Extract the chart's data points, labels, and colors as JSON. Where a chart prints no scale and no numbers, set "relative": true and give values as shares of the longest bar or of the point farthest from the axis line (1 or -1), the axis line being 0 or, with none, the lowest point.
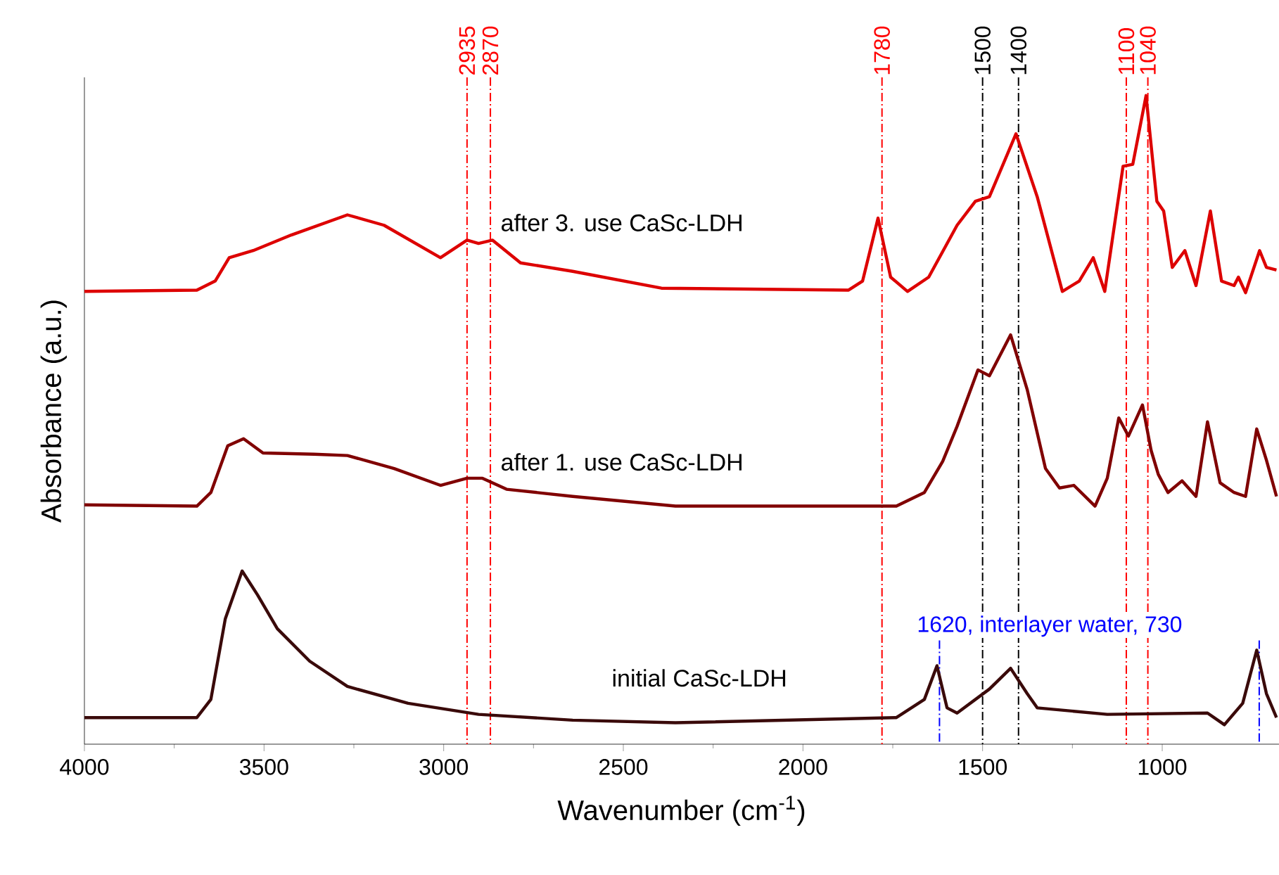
{
  "chart_data": {
    "type": "line",
    "relative": true,
    "xlabel": "Wavenumber (cm$^{-1}$)",
    "ylabel": "Absorbance (a.u.)",
    "xlim": [
      4000,
      675
    ],
    "xticks": [
      4000,
      3500,
      3000,
      2500,
      2000,
      1500,
      1000
    ],
    "legend": false,
    "grid": false,
    "marker": "none",
    "line_style": "solid",
    "series": [
      {
        "name": "after 3. use CaSc-LDH",
        "color": "#dd0000",
        "x": [
          4000,
          3687,
          3636,
          3597,
          3530,
          3424,
          3268,
          3166,
          3009,
          2935,
          2903,
          2864,
          2786,
          2641,
          2394,
          1873,
          1834,
          1791,
          1756,
          1709,
          1650,
          1571,
          1520,
          1481,
          1407,
          1348,
          1278,
          1231,
          1192,
          1160,
          1109,
          1082,
          1045,
          1015,
          996,
          972,
          937,
          906,
          866,
          835,
          800,
          788,
          768,
          729,
          710,
          682
        ],
        "values": [
          0.698,
          0.7,
          0.714,
          0.75,
          0.761,
          0.785,
          0.816,
          0.8,
          0.75,
          0.777,
          0.772,
          0.777,
          0.742,
          0.729,
          0.703,
          0.7,
          0.714,
          0.811,
          0.72,
          0.698,
          0.72,
          0.8,
          0.837,
          0.844,
          0.941,
          0.844,
          0.698,
          0.714,
          0.75,
          0.698,
          0.891,
          0.894,
          1.0,
          0.837,
          0.822,
          0.735,
          0.761,
          0.707,
          0.822,
          0.714,
          0.707,
          0.72,
          0.696,
          0.761,
          0.735,
          0.731
        ]
      },
      {
        "name": "after 1. use CaSc-LDH",
        "color": "#800000",
        "x": [
          4000,
          3687,
          3648,
          3601,
          3557,
          3503,
          3361,
          3268,
          3138,
          3009,
          2935,
          2892,
          2825,
          2641,
          2355,
          1740,
          1662,
          1611,
          1571,
          1513,
          1481,
          1422,
          1376,
          1325,
          1286,
          1246,
          1187,
          1153,
          1121,
          1094,
          1055,
          1031,
          1011,
          984,
          945,
          906,
          874,
          839,
          800,
          768,
          737,
          710,
          682
        ],
        "values": [
          0.369,
          0.367,
          0.388,
          0.46,
          0.471,
          0.449,
          0.447,
          0.445,
          0.425,
          0.399,
          0.41,
          0.41,
          0.393,
          0.382,
          0.367,
          0.367,
          0.388,
          0.436,
          0.49,
          0.577,
          0.568,
          0.631,
          0.547,
          0.425,
          0.395,
          0.399,
          0.367,
          0.41,
          0.503,
          0.475,
          0.523,
          0.453,
          0.416,
          0.388,
          0.406,
          0.382,
          0.497,
          0.403,
          0.388,
          0.382,
          0.486,
          0.438,
          0.382
        ]
      },
      {
        "name": "initial CaSc-LDH",
        "color": "#3a0a0a",
        "x": [
          4000,
          3687,
          3648,
          3608,
          3561,
          3518,
          3463,
          3373,
          3268,
          3099,
          2903,
          2641,
          2355,
          1740,
          1662,
          1627,
          1599,
          1571,
          1481,
          1422,
          1376,
          1348,
          1153,
          874,
          827,
          776,
          737,
          710,
          682
        ],
        "values": [
          0.041,
          0.041,
          0.069,
          0.193,
          0.267,
          0.23,
          0.178,
          0.128,
          0.089,
          0.063,
          0.046,
          0.037,
          0.033,
          0.041,
          0.069,
          0.121,
          0.056,
          0.048,
          0.085,
          0.117,
          0.078,
          0.056,
          0.046,
          0.048,
          0.03,
          0.063,
          0.145,
          0.078,
          0.041
        ]
      }
    ],
    "ref_lines": [
      {
        "axis": "x",
        "value": 2935,
        "label": "2935",
        "color": "#ff0000",
        "line_style": "dashed"
      },
      {
        "axis": "x",
        "value": 2870,
        "label": "2870",
        "color": "#ff0000",
        "line_style": "dashed"
      },
      {
        "axis": "x",
        "value": 1780,
        "label": "1780",
        "color": "#ff0000",
        "line_style": "dashed"
      },
      {
        "axis": "x",
        "value": 1500,
        "label": "1500",
        "color": "#000000",
        "line_style": "dashed"
      },
      {
        "axis": "x",
        "value": 1400,
        "label": "1400",
        "color": "#000000",
        "line_style": "dashed"
      },
      {
        "axis": "x",
        "value": 1100,
        "label": "1100",
        "color": "#ff0000",
        "line_style": "dashed"
      },
      {
        "axis": "x",
        "value": 1040,
        "label": "1040",
        "color": "#ff0000",
        "line_style": "dashed"
      },
      {
        "axis": "x",
        "value": 1620,
        "color": "#0000ff",
        "line_style": "dashed"
      },
      {
        "axis": "x",
        "value": 730,
        "color": "#0000ff",
        "line_style": "dashed"
      }
    ],
    "annotations": [
      "1620, interlayer water, 730"
    ]
  }
}
